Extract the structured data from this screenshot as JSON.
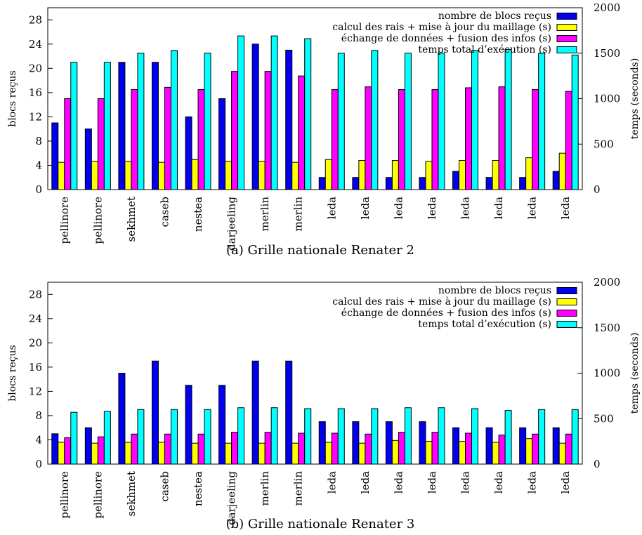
{
  "colors": {
    "blocks": "#0000ee",
    "compute": "#ffff00",
    "exchange": "#ff00ff",
    "total": "#00ffff"
  },
  "chart_data": [
    {
      "type": "bar",
      "title": "",
      "caption": "(a)  Grille nationale Renater 2",
      "ylabel": "blocs reçus",
      "y2label": "temps (seconds)",
      "ylim": [
        0,
        30
      ],
      "yticks": [
        0,
        4,
        8,
        12,
        16,
        20,
        24,
        28
      ],
      "y2lim": [
        0,
        2000
      ],
      "y2ticks": [
        0,
        500,
        1000,
        1500,
        2000
      ],
      "grid": false,
      "legend": "top-right",
      "categories": [
        "pellinore",
        "pellinore",
        "sekhmet",
        "caseb",
        "nestea",
        "darjeeling",
        "merlin",
        "merlin",
        "leda",
        "leda",
        "leda",
        "leda",
        "leda",
        "leda",
        "leda",
        "leda"
      ],
      "series": [
        {
          "name": "nombre de blocs reçus",
          "axis": "left",
          "color_key": "blocks",
          "values": [
            11,
            10,
            21,
            21,
            12,
            15,
            24,
            23,
            2,
            2,
            2,
            2,
            3,
            2,
            2,
            3
          ]
        },
        {
          "name": "calcul des rais + mise à jour du maillage (s)",
          "axis": "right",
          "color_key": "compute",
          "values": [
            300,
            310,
            310,
            300,
            330,
            310,
            310,
            300,
            330,
            320,
            320,
            310,
            320,
            320,
            350,
            400
          ]
        },
        {
          "name": "échange de données + fusion des infos (s)",
          "axis": "right",
          "color_key": "exchange",
          "values": [
            1000,
            1000,
            1100,
            1125,
            1100,
            1300,
            1300,
            1250,
            1100,
            1130,
            1100,
            1100,
            1120,
            1130,
            1100,
            1080
          ]
        },
        {
          "name": "temps total d’exécution (s)",
          "axis": "right",
          "color_key": "total",
          "values": [
            1400,
            1400,
            1500,
            1530,
            1500,
            1690,
            1690,
            1660,
            1500,
            1530,
            1500,
            1500,
            1530,
            1540,
            1500,
            1480
          ]
        }
      ]
    },
    {
      "type": "bar",
      "title": "",
      "caption": "(b)  Grille nationale Renater 3",
      "ylabel": "blocs reçus",
      "y2label": "temps (seconds)",
      "ylim": [
        0,
        30
      ],
      "yticks": [
        0,
        4,
        8,
        12,
        16,
        20,
        24,
        28
      ],
      "y2lim": [
        0,
        2000
      ],
      "y2ticks": [
        0,
        500,
        1000,
        1500,
        2000
      ],
      "grid": false,
      "legend": "top-right",
      "categories": [
        "pellinore",
        "pellinore",
        "sekhmet",
        "caseb",
        "nestea",
        "darjeeling",
        "merlin",
        "merlin",
        "leda",
        "leda",
        "leda",
        "leda",
        "leda",
        "leda",
        "leda",
        "leda"
      ],
      "series": [
        {
          "name": "nombre de blocs reçus",
          "axis": "left",
          "color_key": "blocks",
          "values": [
            5,
            6,
            15,
            17,
            13,
            13,
            17,
            17,
            7,
            7,
            7,
            7,
            6,
            6,
            6,
            6
          ]
        },
        {
          "name": "calcul des rais + mise à jour du maillage (s)",
          "axis": "right",
          "color_key": "compute",
          "values": [
            240,
            230,
            240,
            240,
            230,
            230,
            230,
            230,
            240,
            230,
            260,
            250,
            250,
            240,
            280,
            230
          ]
        },
        {
          "name": "échange de données + fusion des infos (s)",
          "axis": "right",
          "color_key": "exchange",
          "values": [
            290,
            300,
            330,
            330,
            330,
            350,
            350,
            340,
            340,
            330,
            350,
            350,
            340,
            320,
            330,
            330
          ]
        },
        {
          "name": "temps total d’exécution (s)",
          "axis": "right",
          "color_key": "total",
          "values": [
            570,
            580,
            600,
            600,
            600,
            620,
            620,
            610,
            610,
            610,
            620,
            620,
            610,
            590,
            600,
            600
          ]
        }
      ]
    }
  ]
}
